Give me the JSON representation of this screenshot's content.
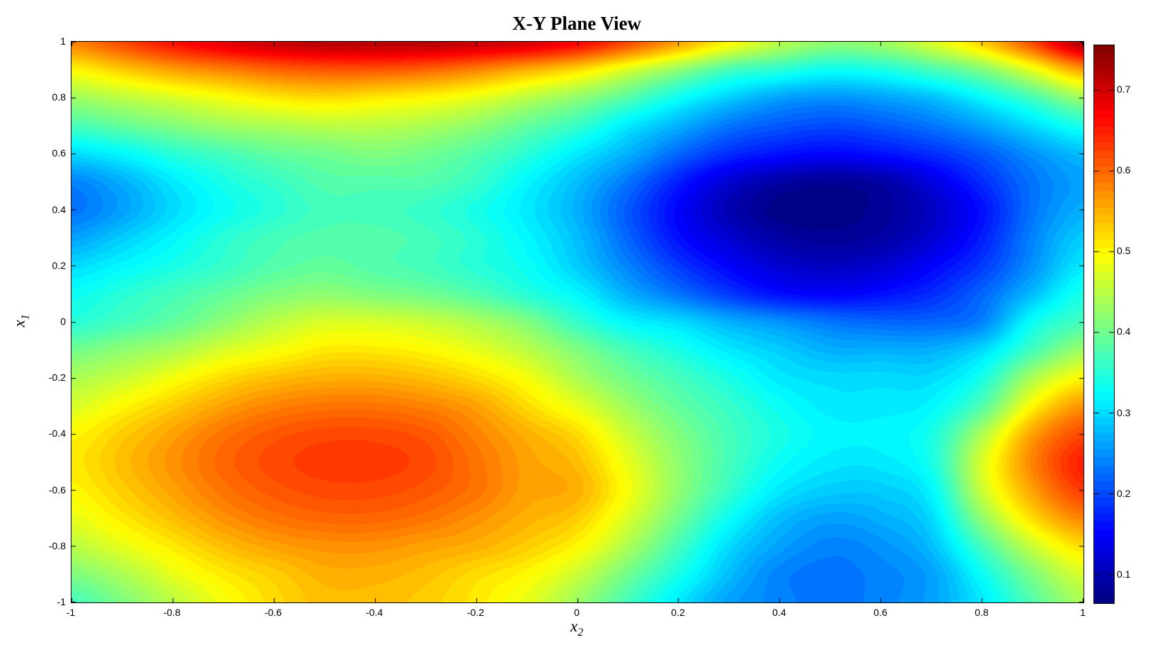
{
  "chart_data": {
    "type": "heatmap",
    "subtype": "filled-contour",
    "title": "X-Y Plane View",
    "xlabel": {
      "base": "x",
      "sub": "2"
    },
    "ylabel": {
      "base": "x",
      "sub": "1"
    },
    "xlim": [
      -1,
      1
    ],
    "ylim": [
      -1,
      1
    ],
    "grid_lines": "off",
    "colormap": "jet",
    "contour_step": 0.01,
    "x_tick_labels": [
      "-1",
      "-0.8",
      "-0.6",
      "-0.4",
      "-0.2",
      "0",
      "0.2",
      "0.4",
      "0.6",
      "0.8",
      "1"
    ],
    "y_tick_labels": [
      "1",
      "0.8",
      "0.6",
      "0.4",
      "0.2",
      "0",
      "-0.2",
      "-0.4",
      "-0.6",
      "-0.8",
      "-1"
    ],
    "colorbar": {
      "position": "right",
      "min": 0.065,
      "max": 0.755,
      "tick_values": [
        0.7,
        0.6,
        0.5,
        0.4,
        0.3,
        0.2,
        0.1
      ],
      "tick_labels": [
        "0.7",
        "0.6",
        "0.5",
        "0.4",
        "0.3",
        "0.2",
        "0.1"
      ]
    },
    "features": {
      "minimum": {
        "x2": 0.45,
        "x1": 0.43,
        "value": 0.07
      },
      "maximum_blob": {
        "x2": -0.45,
        "x1": -0.5,
        "value": 0.63
      },
      "hot_top_edge_value": 0.72,
      "hot_top_right_corner_value": 0.73,
      "hot_right_edge": {
        "x1": -0.5,
        "value": 0.65
      }
    },
    "grid": {
      "x": [
        -1,
        -0.9,
        -0.8,
        -0.7,
        -0.6,
        -0.5,
        -0.4,
        -0.3,
        -0.2,
        -0.1,
        0,
        0.1,
        0.2,
        0.3,
        0.4,
        0.5,
        0.6,
        0.7,
        0.8,
        0.9,
        1
      ],
      "y": [
        1,
        0.9,
        0.8,
        0.7,
        0.6,
        0.5,
        0.4,
        0.3,
        0.2,
        0.1,
        0,
        -0.1,
        -0.2,
        -0.3,
        -0.4,
        -0.5,
        -0.6,
        -0.7,
        -0.8,
        -0.9,
        -1
      ],
      "values": [
        [
          0.58,
          0.62,
          0.66,
          0.69,
          0.71,
          0.72,
          0.72,
          0.72,
          0.71,
          0.7,
          0.67,
          0.62,
          0.56,
          0.5,
          0.45,
          0.42,
          0.43,
          0.47,
          0.53,
          0.62,
          0.73
        ],
        [
          0.5,
          0.53,
          0.56,
          0.58,
          0.6,
          0.61,
          0.61,
          0.6,
          0.58,
          0.55,
          0.52,
          0.47,
          0.42,
          0.37,
          0.35,
          0.33,
          0.34,
          0.37,
          0.41,
          0.48,
          0.56
        ],
        [
          0.43,
          0.45,
          0.47,
          0.49,
          0.51,
          0.52,
          0.51,
          0.5,
          0.48,
          0.45,
          0.42,
          0.38,
          0.33,
          0.29,
          0.26,
          0.25,
          0.26,
          0.28,
          0.32,
          0.37,
          0.43
        ],
        [
          0.37,
          0.39,
          0.41,
          0.43,
          0.44,
          0.45,
          0.45,
          0.44,
          0.42,
          0.39,
          0.36,
          0.31,
          0.27,
          0.23,
          0.21,
          0.2,
          0.21,
          0.23,
          0.26,
          0.3,
          0.34
        ],
        [
          0.3,
          0.32,
          0.35,
          0.37,
          0.39,
          0.4,
          0.41,
          0.4,
          0.38,
          0.35,
          0.31,
          0.27,
          0.22,
          0.18,
          0.16,
          0.15,
          0.16,
          0.18,
          0.21,
          0.25,
          0.28
        ],
        [
          0.24,
          0.27,
          0.31,
          0.34,
          0.36,
          0.38,
          0.38,
          0.38,
          0.36,
          0.32,
          0.28,
          0.23,
          0.17,
          0.12,
          0.09,
          0.08,
          0.09,
          0.13,
          0.18,
          0.23,
          0.26
        ],
        [
          0.23,
          0.26,
          0.3,
          0.33,
          0.35,
          0.37,
          0.37,
          0.36,
          0.34,
          0.31,
          0.27,
          0.21,
          0.15,
          0.1,
          0.07,
          0.07,
          0.08,
          0.11,
          0.16,
          0.23,
          0.27
        ],
        [
          0.26,
          0.29,
          0.32,
          0.35,
          0.37,
          0.38,
          0.38,
          0.37,
          0.35,
          0.32,
          0.28,
          0.22,
          0.16,
          0.12,
          0.09,
          0.08,
          0.09,
          0.12,
          0.17,
          0.24,
          0.29
        ],
        [
          0.3,
          0.32,
          0.34,
          0.36,
          0.38,
          0.39,
          0.38,
          0.37,
          0.35,
          0.33,
          0.29,
          0.24,
          0.19,
          0.15,
          0.12,
          0.11,
          0.12,
          0.15,
          0.19,
          0.25,
          0.31
        ],
        [
          0.33,
          0.35,
          0.37,
          0.39,
          0.41,
          0.42,
          0.41,
          0.4,
          0.38,
          0.35,
          0.32,
          0.27,
          0.23,
          0.19,
          0.16,
          0.15,
          0.16,
          0.18,
          0.22,
          0.28,
          0.34
        ],
        [
          0.35,
          0.37,
          0.39,
          0.42,
          0.45,
          0.47,
          0.47,
          0.46,
          0.44,
          0.41,
          0.36,
          0.32,
          0.3,
          0.27,
          0.25,
          0.23,
          0.22,
          0.22,
          0.24,
          0.33,
          0.37
        ],
        [
          0.4,
          0.42,
          0.44,
          0.47,
          0.49,
          0.51,
          0.51,
          0.5,
          0.48,
          0.45,
          0.41,
          0.37,
          0.34,
          0.31,
          0.29,
          0.27,
          0.27,
          0.27,
          0.3,
          0.37,
          0.43
        ],
        [
          0.44,
          0.46,
          0.49,
          0.52,
          0.54,
          0.55,
          0.55,
          0.54,
          0.52,
          0.49,
          0.44,
          0.4,
          0.37,
          0.34,
          0.31,
          0.3,
          0.3,
          0.3,
          0.34,
          0.44,
          0.5
        ],
        [
          0.47,
          0.5,
          0.53,
          0.56,
          0.58,
          0.59,
          0.59,
          0.58,
          0.56,
          0.52,
          0.48,
          0.43,
          0.39,
          0.36,
          0.33,
          0.31,
          0.31,
          0.32,
          0.38,
          0.5,
          0.57
        ],
        [
          0.5,
          0.53,
          0.56,
          0.59,
          0.61,
          0.62,
          0.62,
          0.61,
          0.58,
          0.55,
          0.52,
          0.46,
          0.41,
          0.37,
          0.34,
          0.32,
          0.32,
          0.34,
          0.44,
          0.56,
          0.62
        ],
        [
          0.51,
          0.54,
          0.57,
          0.6,
          0.62,
          0.63,
          0.63,
          0.62,
          0.59,
          0.56,
          0.54,
          0.48,
          0.42,
          0.37,
          0.33,
          0.31,
          0.31,
          0.34,
          0.47,
          0.58,
          0.65
        ],
        [
          0.5,
          0.53,
          0.56,
          0.59,
          0.61,
          0.62,
          0.62,
          0.61,
          0.59,
          0.56,
          0.55,
          0.49,
          0.42,
          0.36,
          0.31,
          0.29,
          0.29,
          0.32,
          0.46,
          0.56,
          0.63
        ],
        [
          0.48,
          0.51,
          0.54,
          0.57,
          0.59,
          0.6,
          0.6,
          0.59,
          0.57,
          0.55,
          0.53,
          0.47,
          0.4,
          0.33,
          0.28,
          0.26,
          0.27,
          0.3,
          0.42,
          0.52,
          0.58
        ],
        [
          0.45,
          0.48,
          0.51,
          0.54,
          0.56,
          0.57,
          0.57,
          0.56,
          0.55,
          0.53,
          0.5,
          0.44,
          0.37,
          0.3,
          0.26,
          0.24,
          0.25,
          0.28,
          0.37,
          0.46,
          0.52
        ],
        [
          0.41,
          0.44,
          0.48,
          0.51,
          0.53,
          0.55,
          0.55,
          0.54,
          0.52,
          0.5,
          0.46,
          0.4,
          0.34,
          0.28,
          0.24,
          0.23,
          0.24,
          0.26,
          0.33,
          0.41,
          0.47
        ],
        [
          0.37,
          0.41,
          0.45,
          0.49,
          0.52,
          0.54,
          0.54,
          0.53,
          0.51,
          0.48,
          0.43,
          0.37,
          0.31,
          0.26,
          0.24,
          0.23,
          0.24,
          0.26,
          0.31,
          0.38,
          0.44
        ]
      ]
    }
  }
}
